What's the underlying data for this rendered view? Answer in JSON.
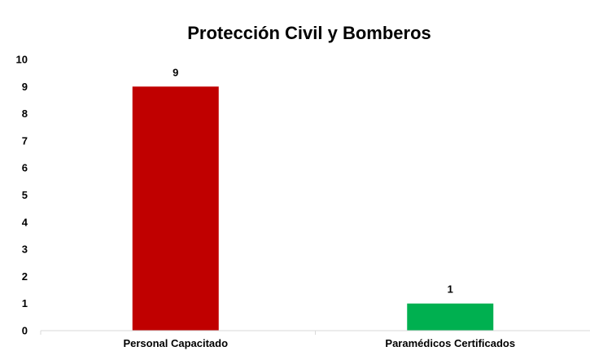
{
  "chart_data": {
    "type": "bar",
    "title": "Protección Civil y Bomberos",
    "categories": [
      "Personal Capacitado",
      "Paramédicos Certificados"
    ],
    "values": [
      9,
      1
    ],
    "colors": [
      "#c00000",
      "#00b050"
    ],
    "data_labels": [
      "9",
      "1"
    ],
    "xlabel": "",
    "ylabel": "",
    "ylim": [
      0,
      10
    ],
    "yticks": [
      "0",
      "1",
      "2",
      "3",
      "4",
      "5",
      "6",
      "7",
      "8",
      "9",
      "10"
    ],
    "grid": false,
    "legend": "none",
    "axis_color": "#d9d9d9"
  }
}
